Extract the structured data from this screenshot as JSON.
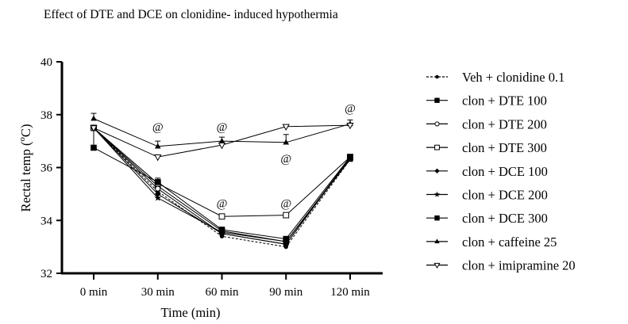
{
  "chart_data": {
    "type": "line",
    "title": "Effect of DTE and DCE on clonidine- induced hypothermia",
    "xlabel": "Time (min)",
    "ylabel_main": "Rectal temp (",
    "ylabel_sup": "o",
    "ylabel_end": "C)",
    "categories": [
      "0 min",
      "30 min",
      "60 min",
      "90 min",
      "120 min"
    ],
    "ylim": [
      32,
      40
    ],
    "yticks": [
      "32",
      "34",
      "36",
      "38",
      "40"
    ],
    "grid": false,
    "legend_position": "right",
    "series": [
      {
        "name": "Veh + clonidine 0.1",
        "marker": "circle-filled-small",
        "dashed": true,
        "values": [
          37.5,
          35.1,
          33.4,
          33.0,
          36.3
        ]
      },
      {
        "name": "clon + DTE 100",
        "marker": "square-filled",
        "dashed": false,
        "values": [
          37.5,
          35.3,
          33.6,
          33.2,
          36.35
        ]
      },
      {
        "name": "clon + DTE 200",
        "marker": "circle-open",
        "dashed": false,
        "values": [
          37.5,
          35.2,
          33.5,
          33.1,
          36.4
        ]
      },
      {
        "name": "clon + DTE 300",
        "marker": "square-open",
        "dashed": false,
        "values": [
          37.5,
          35.4,
          34.15,
          34.2,
          36.4
        ]
      },
      {
        "name": "clon + DCE 100",
        "marker": "diamond-filled",
        "dashed": false,
        "values": [
          37.5,
          35.0,
          33.5,
          33.1,
          36.35
        ]
      },
      {
        "name": "clon + DCE 200",
        "marker": "star-filled",
        "dashed": false,
        "values": [
          37.5,
          34.85,
          33.55,
          33.2,
          36.3
        ]
      },
      {
        "name": "clon + DCE 300",
        "marker": "square-filled",
        "dashed": false,
        "values": [
          36.75,
          35.45,
          33.65,
          33.3,
          36.4
        ]
      },
      {
        "name": "clon + caffeine 25",
        "marker": "triangle-up-filled",
        "dashed": false,
        "values": [
          37.85,
          36.8,
          37.0,
          36.95,
          37.65
        ]
      },
      {
        "name": "clon + imipramine 20",
        "marker": "triangle-down-open",
        "dashed": false,
        "values": [
          37.5,
          36.4,
          36.85,
          37.55,
          37.6
        ]
      }
    ],
    "annotations": [
      {
        "text": "@",
        "category": "30 min",
        "value": 37.55
      },
      {
        "text": "@",
        "category": "60 min",
        "value": 37.55
      },
      {
        "text": "@",
        "category": "90 min",
        "value": 36.35
      },
      {
        "text": "@",
        "category": "60 min",
        "value": 34.65
      },
      {
        "text": "@",
        "category": "90 min",
        "value": 34.65
      },
      {
        "text": "@",
        "category": "120 min",
        "value": 38.25
      }
    ],
    "error_bars": [
      {
        "series": "clon + caffeine 25",
        "category": "0 min",
        "upper": 38.05
      },
      {
        "series": "clon + caffeine 25",
        "category": "30 min",
        "upper": 37.0
      },
      {
        "series": "clon + caffeine 25",
        "category": "60 min",
        "upper": 37.15
      },
      {
        "series": "clon + caffeine 25",
        "category": "90 min",
        "upper": 37.25
      },
      {
        "series": "clon + caffeine 25",
        "category": "120 min",
        "upper": 37.8
      },
      {
        "series": "clon + DCE 300",
        "category": "0 min",
        "upper": 37.5
      },
      {
        "series": "clon + DTE 300",
        "category": "30 min",
        "upper": 35.6
      }
    ]
  }
}
